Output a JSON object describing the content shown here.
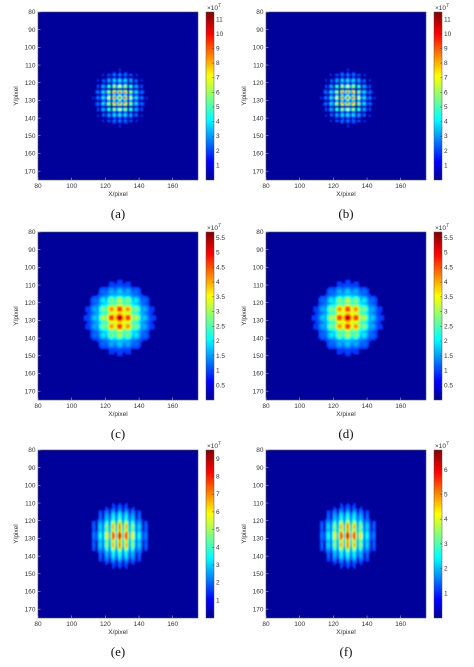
{
  "chart_data": [
    {
      "panel": "a",
      "caption": "(a)",
      "type": "heatmap",
      "xlabel": "X/pixel",
      "ylabel": "Y/pixel",
      "x_ticks": [
        "80",
        "100",
        "120",
        "140",
        "160"
      ],
      "y_ticks": [
        "80",
        "90",
        "100",
        "110",
        "120",
        "130",
        "140",
        "150",
        "160",
        "170"
      ],
      "xlim": [
        80,
        175
      ],
      "ylim": [
        80,
        175
      ],
      "center": [
        128,
        128
      ],
      "spread": 7,
      "peak": 11.5,
      "spot_style": "lattice",
      "colorbar": {
        "exponent": "×10",
        "power": "7",
        "ticks": [
          "1",
          "2",
          "3",
          "4",
          "5",
          "6",
          "7",
          "8",
          "9",
          "10",
          "11"
        ],
        "min": 0,
        "max": 11.5
      }
    },
    {
      "panel": "b",
      "caption": "(b)",
      "type": "heatmap",
      "xlabel": "X/pixel",
      "ylabel": "Y/pixel",
      "x_ticks": [
        "80",
        "100",
        "120",
        "140",
        "160"
      ],
      "y_ticks": [
        "80",
        "90",
        "100",
        "110",
        "120",
        "130",
        "140",
        "150",
        "160",
        "170"
      ],
      "xlim": [
        80,
        175
      ],
      "ylim": [
        80,
        175
      ],
      "center": [
        128,
        128
      ],
      "spread": 7,
      "peak": 11.5,
      "spot_style": "lattice",
      "colorbar": {
        "exponent": "×10",
        "power": "7",
        "ticks": [
          "1",
          "2",
          "3",
          "4",
          "5",
          "6",
          "7",
          "8",
          "9",
          "10",
          "11"
        ],
        "min": 0,
        "max": 11.5
      }
    },
    {
      "panel": "c",
      "caption": "(c)",
      "type": "heatmap",
      "xlabel": "X/pixel",
      "ylabel": "Y/pixel",
      "x_ticks": [
        "80",
        "100",
        "120",
        "140",
        "160"
      ],
      "y_ticks": [
        "80",
        "90",
        "100",
        "110",
        "120",
        "130",
        "140",
        "150",
        "160",
        "170"
      ],
      "xlim": [
        80,
        175
      ],
      "ylim": [
        80,
        175
      ],
      "center": [
        128,
        128
      ],
      "spread": 9,
      "peak": 5.7,
      "spot_style": "blob",
      "colorbar": {
        "exponent": "×10",
        "power": "7",
        "ticks": [
          "0.5",
          "1",
          "1.5",
          "2",
          "2.5",
          "3",
          "3.5",
          "4",
          "4.5",
          "5",
          "5.5"
        ],
        "min": 0,
        "max": 5.7
      }
    },
    {
      "panel": "d",
      "caption": "(d)",
      "type": "heatmap",
      "xlabel": "X/pixel",
      "ylabel": "Y/pixel",
      "x_ticks": [
        "80",
        "100",
        "120",
        "140",
        "160"
      ],
      "y_ticks": [
        "80",
        "90",
        "100",
        "110",
        "120",
        "130",
        "140",
        "150",
        "160",
        "170"
      ],
      "xlim": [
        80,
        175
      ],
      "ylim": [
        80,
        175
      ],
      "center": [
        128,
        128
      ],
      "spread": 9,
      "peak": 5.7,
      "spot_style": "blob",
      "colorbar": {
        "exponent": "×10",
        "power": "7",
        "ticks": [
          "0.5",
          "1",
          "1.5",
          "2",
          "2.5",
          "3",
          "3.5",
          "4",
          "4.5",
          "5",
          "5.5"
        ],
        "min": 0,
        "max": 5.7
      }
    },
    {
      "panel": "e",
      "caption": "(e)",
      "type": "heatmap",
      "xlabel": "X/pixel",
      "ylabel": "Y/pixel",
      "x_ticks": [
        "80",
        "100",
        "120",
        "140",
        "160"
      ],
      "y_ticks": [
        "80",
        "90",
        "100",
        "110",
        "120",
        "130",
        "140",
        "150",
        "160",
        "170"
      ],
      "xlim": [
        80,
        175
      ],
      "ylim": [
        80,
        175
      ],
      "center": [
        128,
        128
      ],
      "spread": 8,
      "peak": 9.5,
      "spot_style": "stripes",
      "colorbar": {
        "exponent": "×10",
        "power": "7",
        "ticks": [
          "1",
          "2",
          "3",
          "4",
          "5",
          "6",
          "7",
          "8",
          "9"
        ],
        "min": 0,
        "max": 9.5
      }
    },
    {
      "panel": "f",
      "caption": "(f)",
      "type": "heatmap",
      "xlabel": "X/pixel",
      "ylabel": "Y/pixel",
      "x_ticks": [
        "80",
        "100",
        "120",
        "140",
        "160"
      ],
      "y_ticks": [
        "80",
        "90",
        "100",
        "110",
        "120",
        "130",
        "140",
        "150",
        "160",
        "170"
      ],
      "xlim": [
        80,
        175
      ],
      "ylim": [
        80,
        175
      ],
      "center": [
        128,
        128
      ],
      "spread": 8,
      "peak": 6.8,
      "spot_style": "stripes",
      "colorbar": {
        "exponent": "×10",
        "power": "7",
        "ticks": [
          "1",
          "2",
          "3",
          "4",
          "5",
          "6"
        ],
        "min": 0,
        "max": 6.8
      }
    }
  ]
}
